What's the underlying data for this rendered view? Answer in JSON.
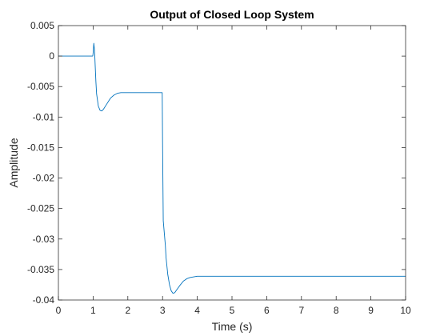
{
  "chart_data": {
    "type": "line",
    "title": "Output of Closed Loop System",
    "xlabel": "Time (s)",
    "ylabel": "Amplitude",
    "xlim": [
      0,
      10
    ],
    "ylim": [
      -0.04,
      0.005
    ],
    "xticks": [
      0,
      1,
      2,
      3,
      4,
      5,
      6,
      7,
      8,
      9,
      10
    ],
    "xtick_labels": [
      "0",
      "1",
      "2",
      "3",
      "4",
      "5",
      "6",
      "7",
      "8",
      "9",
      "10"
    ],
    "yticks": [
      0.005,
      0,
      -0.005,
      -0.01,
      -0.015,
      -0.02,
      -0.025,
      -0.03,
      -0.035,
      -0.04
    ],
    "ytick_labels": [
      "0.005",
      "0",
      "-0.005",
      "-0.01",
      "-0.015",
      "-0.02",
      "-0.025",
      "-0.03",
      "-0.035",
      "-0.04"
    ],
    "grid": false,
    "box": true,
    "line_color": "#0072BD",
    "series": [
      {
        "x": [
          0,
          0.99,
          1.0,
          1.02,
          1.04,
          1.05,
          1.06,
          1.08,
          1.1,
          1.15,
          1.2,
          1.25,
          1.3,
          1.4,
          1.5,
          1.6,
          1.7,
          1.8,
          1.9,
          2.0,
          2.1,
          2.2,
          2.4,
          2.6,
          2.8,
          2.99,
          3.0,
          3.02,
          3.05,
          3.08,
          3.1,
          3.15,
          3.2,
          3.25,
          3.3,
          3.35,
          3.4,
          3.5,
          3.6,
          3.7,
          3.8,
          3.9,
          4.0,
          4.2,
          4.5,
          5.0,
          6.0,
          7.0,
          8.0,
          9.0,
          10.0
        ],
        "y": [
          0,
          0,
          0.0005,
          0.0021,
          0.001,
          -0.0002,
          -0.0016,
          -0.0042,
          -0.0062,
          -0.0082,
          -0.0089,
          -0.009,
          -0.0087,
          -0.0078,
          -0.0069,
          -0.0064,
          -0.0061,
          -0.006,
          -0.006,
          -0.006,
          -0.006,
          -0.006,
          -0.006,
          -0.006,
          -0.006,
          -0.006,
          -0.014,
          -0.027,
          -0.029,
          -0.031,
          -0.033,
          -0.0358,
          -0.0375,
          -0.0385,
          -0.0389,
          -0.0388,
          -0.0384,
          -0.0376,
          -0.0369,
          -0.0365,
          -0.0363,
          -0.0362,
          -0.0361,
          -0.0361,
          -0.0361,
          -0.0361,
          -0.0361,
          -0.0361,
          -0.0361,
          -0.0361,
          -0.0361
        ]
      }
    ]
  }
}
